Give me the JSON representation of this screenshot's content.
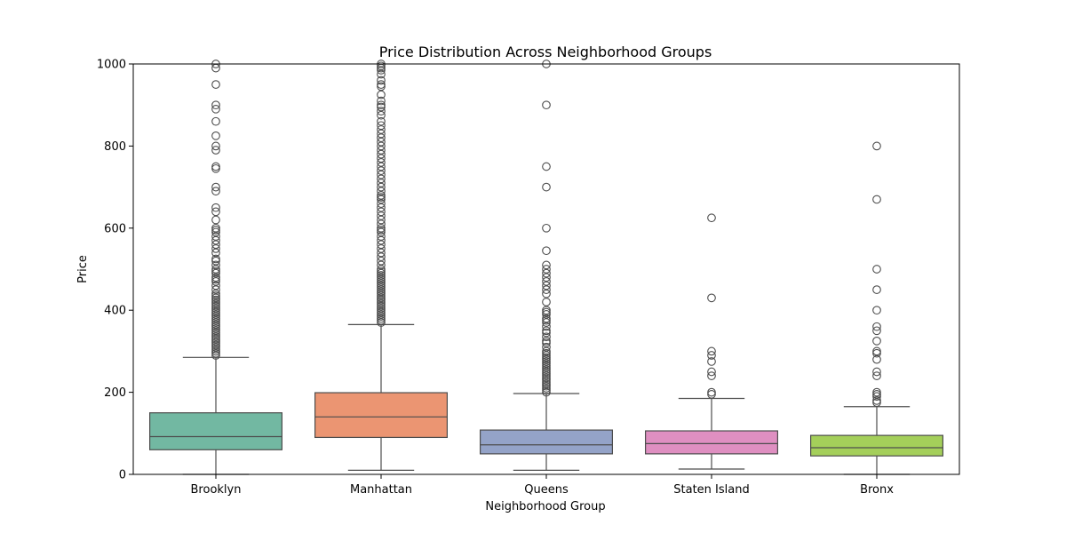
{
  "chart_data": {
    "type": "box",
    "title": "Price Distribution Across Neighborhood Groups",
    "xlabel": "Neighborhood Group",
    "ylabel": "Price",
    "ylim": [
      0,
      1000
    ],
    "yticks": [
      0,
      200,
      400,
      600,
      800,
      1000
    ],
    "grid": false,
    "categories": [
      "Brooklyn",
      "Manhattan",
      "Queens",
      "Staten Island",
      "Bronx"
    ],
    "series": [
      {
        "category": "Brooklyn",
        "color": "#72b8a2",
        "whisker_low": 0,
        "q1": 60,
        "median": 92,
        "q3": 150,
        "whisker_high": 285,
        "outliers": [
          290,
          295,
          300,
          305,
          310,
          315,
          320,
          325,
          330,
          335,
          340,
          345,
          350,
          355,
          360,
          365,
          370,
          375,
          380,
          385,
          390,
          395,
          400,
          405,
          410,
          415,
          420,
          425,
          430,
          435,
          440,
          450,
          460,
          470,
          475,
          480,
          490,
          495,
          500,
          510,
          520,
          525,
          540,
          550,
          560,
          570,
          580,
          590,
          595,
          600,
          620,
          640,
          650,
          690,
          700,
          745,
          750,
          790,
          800,
          825,
          860,
          890,
          900,
          950,
          990,
          1000
        ]
      },
      {
        "category": "Manhattan",
        "color": "#eb9572",
        "whisker_low": 10,
        "q1": 90,
        "median": 140,
        "q3": 199,
        "whisker_high": 365,
        "outliers": [
          370,
          375,
          380,
          385,
          390,
          395,
          400,
          405,
          410,
          415,
          420,
          425,
          430,
          435,
          440,
          445,
          450,
          455,
          460,
          465,
          470,
          475,
          480,
          485,
          490,
          495,
          500,
          510,
          520,
          530,
          540,
          550,
          560,
          570,
          580,
          590,
          595,
          600,
          610,
          620,
          630,
          640,
          650,
          660,
          670,
          675,
          680,
          690,
          700,
          710,
          720,
          730,
          740,
          750,
          760,
          770,
          780,
          790,
          800,
          810,
          820,
          830,
          840,
          850,
          860,
          875,
          885,
          895,
          900,
          910,
          925,
          945,
          950,
          960,
          975,
          985,
          990,
          995,
          1000
        ]
      },
      {
        "category": "Queens",
        "color": "#94a3c8",
        "whisker_low": 10,
        "q1": 50,
        "median": 72,
        "q3": 108,
        "whisker_high": 197,
        "outliers": [
          200,
          205,
          210,
          215,
          220,
          225,
          230,
          235,
          240,
          245,
          250,
          255,
          260,
          265,
          270,
          275,
          280,
          285,
          290,
          295,
          300,
          310,
          320,
          325,
          335,
          345,
          350,
          360,
          370,
          375,
          380,
          390,
          395,
          400,
          420,
          440,
          450,
          460,
          470,
          480,
          490,
          500,
          510,
          545,
          600,
          700,
          750,
          900,
          1000
        ]
      },
      {
        "category": "Staten Island",
        "color": "#df8fc1",
        "whisker_low": 13,
        "q1": 50,
        "median": 75,
        "q3": 106,
        "whisker_high": 185,
        "outliers": [
          195,
          200,
          240,
          250,
          275,
          290,
          300,
          430,
          625
        ]
      },
      {
        "category": "Bronx",
        "color": "#a4cf5a",
        "whisker_low": 0,
        "q1": 45,
        "median": 65,
        "q3": 95,
        "whisker_high": 165,
        "outliers": [
          175,
          180,
          190,
          195,
          200,
          240,
          250,
          280,
          295,
          300,
          325,
          350,
          360,
          400,
          450,
          500,
          670,
          800
        ]
      }
    ]
  }
}
